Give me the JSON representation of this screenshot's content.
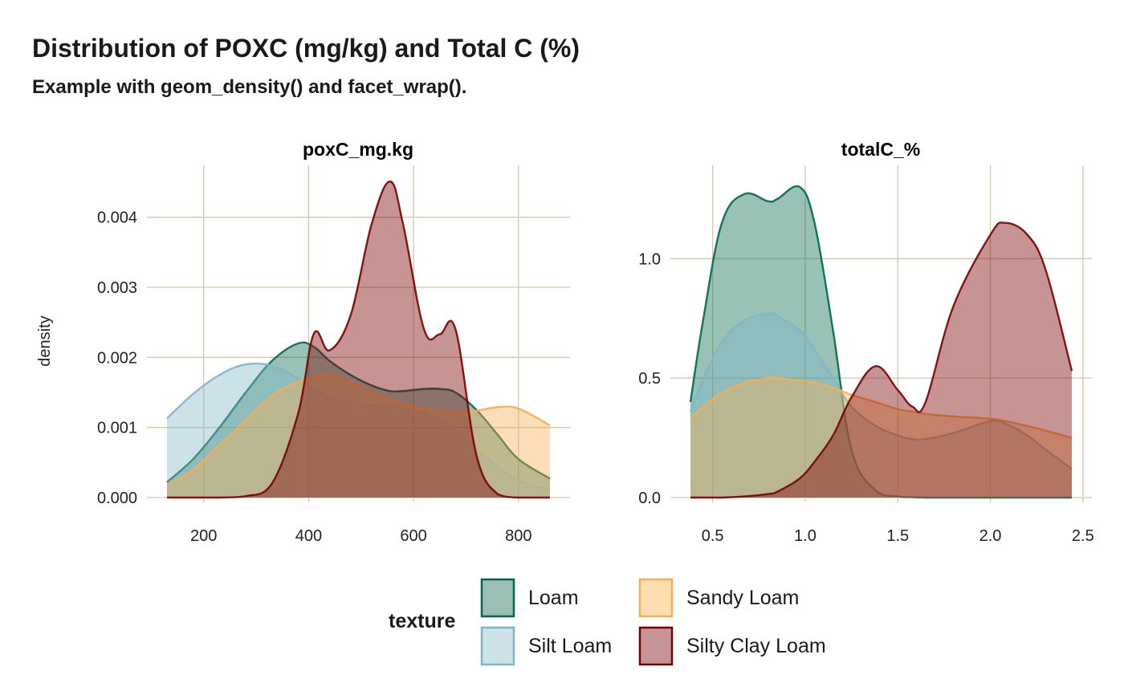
{
  "title": "Distribution of POXC (mg/kg) and Total C (%)",
  "subtitle": "Example with geom_density() and facet_wrap().",
  "legend": {
    "title": "texture",
    "placement": "bottom",
    "entries": [
      {
        "label": "Loam",
        "fill": "#9bbfb5",
        "stroke": "#00674a"
      },
      {
        "label": "Silt Loam",
        "fill": "#cde2e8",
        "stroke": "#7fb6c6"
      },
      {
        "label": "Sandy Loam",
        "fill": "#fddeb0",
        "stroke": "#f9ad4e"
      },
      {
        "label": "Silty Clay Loam",
        "fill": "#c59497",
        "stroke": "#7a0000"
      }
    ]
  },
  "chart_data": [
    {
      "type": "area",
      "panel_title": "poxC_mg.kg",
      "ylabel": "density",
      "xlabel": "",
      "xlim": [
        130,
        860
      ],
      "ylim": [
        0,
        0.0045
      ],
      "x_ticks": [
        200,
        400,
        600,
        800
      ],
      "y_ticks": [
        0.0,
        0.001,
        0.002,
        0.003,
        0.004
      ],
      "y_tick_labels": [
        "0.000",
        "0.001",
        "0.002",
        "0.003",
        "0.004"
      ],
      "x_tick_labels": [
        "200",
        "400",
        "600",
        "800"
      ],
      "grid": true,
      "x": [
        130,
        180,
        230,
        280,
        330,
        380,
        410,
        440,
        480,
        520,
        555,
        580,
        620,
        650,
        680,
        720,
        760,
        800,
        860
      ],
      "series": [
        {
          "name": "Loam",
          "values": [
            0.00022,
            0.00055,
            0.001,
            0.0015,
            0.00195,
            0.0022,
            0.00215,
            0.00195,
            0.00175,
            0.0016,
            0.00152,
            0.00152,
            0.00155,
            0.00155,
            0.0015,
            0.00125,
            0.0009,
            0.00055,
            0.00027
          ]
        },
        {
          "name": "Silt Loam",
          "values": [
            0.00113,
            0.00148,
            0.00175,
            0.0019,
            0.00188,
            0.0017,
            0.00155,
            0.00142,
            0.00135,
            0.00132,
            0.0013,
            0.00128,
            0.0012,
            0.0011,
            0.00095,
            0.0007,
            0.00045,
            0.00025,
            0.0001
          ]
        },
        {
          "name": "Sandy Loam",
          "values": [
            0.00018,
            0.0004,
            0.00075,
            0.0011,
            0.00145,
            0.00165,
            0.00172,
            0.00175,
            0.00165,
            0.0015,
            0.0014,
            0.00133,
            0.00126,
            0.00122,
            0.00122,
            0.00124,
            0.00129,
            0.00127,
            0.00103
          ]
        },
        {
          "name": "Silty Clay Loam",
          "values": [
            0.0,
            0.0,
            0.0,
            2e-05,
            0.0002,
            0.0012,
            0.00234,
            0.0021,
            0.0026,
            0.0039,
            0.00451,
            0.0039,
            0.0024,
            0.00233,
            0.0024,
            0.0006,
            5e-05,
            0.0,
            0.0
          ]
        }
      ]
    },
    {
      "type": "area",
      "panel_title": "totalC_%",
      "ylabel": "",
      "xlabel": "",
      "xlim": [
        0.38,
        2.44
      ],
      "ylim": [
        0,
        1.3
      ],
      "x_ticks": [
        0.5,
        1.0,
        1.5,
        2.0,
        2.5
      ],
      "x_tick_labels": [
        "0.5",
        "1.0",
        "1.5",
        "2.0",
        "2.5"
      ],
      "y_ticks": [
        0.0,
        0.5,
        1.0
      ],
      "y_tick_labels": [
        "0.0",
        "0.5",
        "1.0"
      ],
      "grid": true,
      "x": [
        0.38,
        0.45,
        0.55,
        0.67,
        0.8,
        0.85,
        0.97,
        1.05,
        1.15,
        1.25,
        1.38,
        1.5,
        1.58,
        1.65,
        1.8,
        2.0,
        2.08,
        2.2,
        2.3,
        2.44
      ],
      "series": [
        {
          "name": "Loam",
          "values": [
            0.4,
            0.75,
            1.15,
            1.27,
            1.24,
            1.25,
            1.3,
            1.15,
            0.7,
            0.2,
            0.03,
            0.005,
            0.002,
            0.0,
            0.0,
            0.0,
            0.0,
            0.0,
            0.0,
            0.0
          ]
        },
        {
          "name": "Silt Loam",
          "values": [
            0.36,
            0.5,
            0.65,
            0.74,
            0.77,
            0.76,
            0.7,
            0.62,
            0.5,
            0.38,
            0.3,
            0.26,
            0.245,
            0.245,
            0.27,
            0.32,
            0.31,
            0.26,
            0.2,
            0.12
          ]
        },
        {
          "name": "Sandy Loam",
          "values": [
            0.33,
            0.38,
            0.44,
            0.48,
            0.5,
            0.5,
            0.49,
            0.48,
            0.46,
            0.43,
            0.4,
            0.37,
            0.36,
            0.35,
            0.34,
            0.33,
            0.32,
            0.3,
            0.28,
            0.25
          ]
        },
        {
          "name": "Silty Clay Loam",
          "values": [
            0.0,
            0.0,
            0.0,
            0.005,
            0.015,
            0.025,
            0.08,
            0.15,
            0.26,
            0.42,
            0.55,
            0.45,
            0.38,
            0.4,
            0.8,
            1.1,
            1.15,
            1.1,
            0.95,
            0.53
          ]
        }
      ]
    }
  ]
}
